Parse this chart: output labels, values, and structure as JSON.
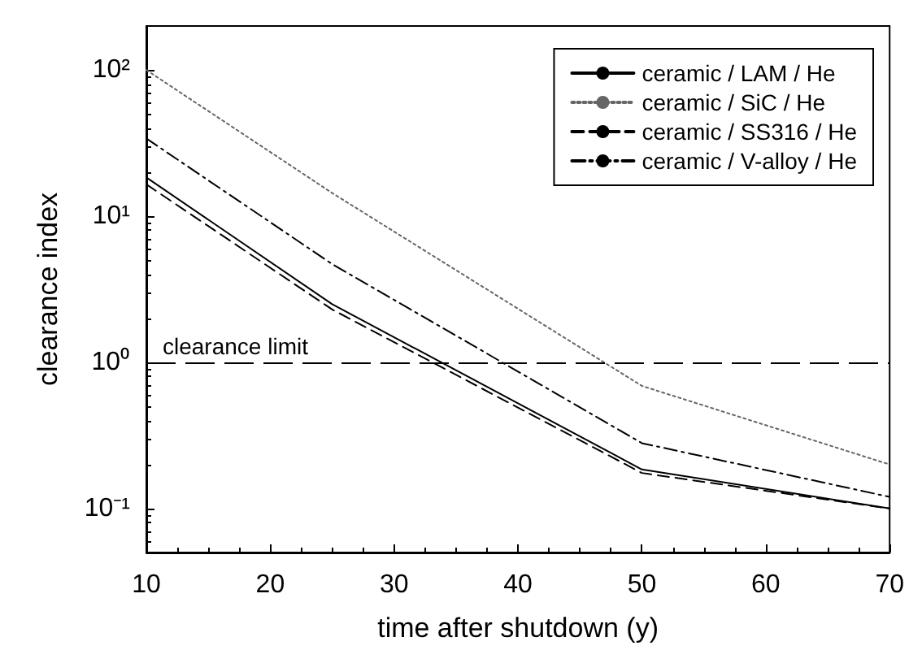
{
  "chart_data": {
    "type": "line",
    "xlabel": "time after shutdown (y)",
    "ylabel": "clearance index",
    "x": [
      10,
      25,
      50,
      70
    ],
    "series": [
      {
        "name": "ceramic / LAM / He",
        "color": "#000000",
        "line_style": "solid",
        "values": [
          18.4,
          2.5,
          0.185,
          0.1
        ]
      },
      {
        "name": "ceramic / SiC / He",
        "color": "#666666",
        "line_style": "dotted",
        "values": [
          100,
          14.4,
          0.69,
          0.2
        ]
      },
      {
        "name": "ceramic / SS316 / He",
        "color": "#000000",
        "line_style": "dashed",
        "values": [
          16.5,
          2.3,
          0.175,
          0.1
        ]
      },
      {
        "name": "ceramic / V-alloy / He",
        "color": "#000000",
        "line_style": "dashdot",
        "values": [
          34,
          4.7,
          0.28,
          0.12
        ]
      }
    ],
    "xlim": [
      10,
      70
    ],
    "xticks": [
      10,
      20,
      30,
      40,
      50,
      60,
      70
    ],
    "ylim": [
      0.05,
      200
    ],
    "yticks": [
      {
        "value": 0.1,
        "label": "10⁻¹"
      },
      {
        "value": 1,
        "label": "10⁰"
      },
      {
        "value": 10,
        "label": "10¹"
      },
      {
        "value": 100,
        "label": "10²"
      }
    ],
    "log": "y",
    "grid": false,
    "legend": "top right",
    "marker": "none",
    "ref_lines": [
      {
        "axis": "y",
        "value": 1,
        "label": "clearance limit",
        "color": "#000000",
        "line_style": "dashed"
      }
    ]
  }
}
